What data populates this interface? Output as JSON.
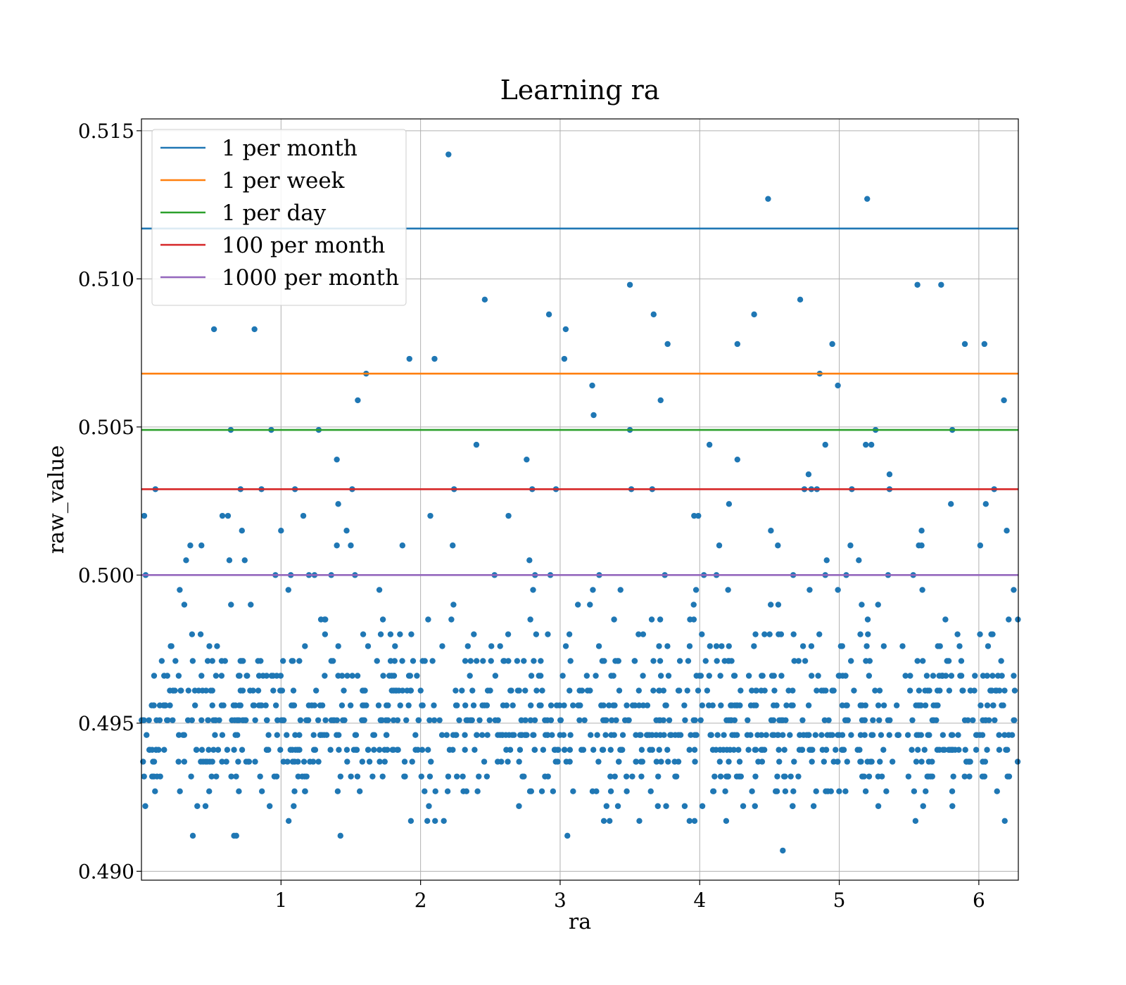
{
  "chart_data": {
    "type": "scatter",
    "title": "Learning ra",
    "xlabel": "ra",
    "ylabel": "raw_value",
    "xlim": [
      0.0,
      6.283
    ],
    "ylim": [
      0.4897,
      0.5154
    ],
    "xticks": [
      1,
      2,
      3,
      4,
      5,
      6
    ],
    "xtick_labels": [
      "1",
      "2",
      "3",
      "4",
      "5",
      "6"
    ],
    "yticks": [
      0.49,
      0.495,
      0.5,
      0.505,
      0.51,
      0.515
    ],
    "ytick_labels": [
      "0.490",
      "0.495",
      "0.500",
      "0.505",
      "0.510",
      "0.515"
    ],
    "grid": true,
    "legend_position": "upper-left",
    "hlines": [
      {
        "name": "1 per month",
        "y": 0.5117,
        "color": "#1f77b4"
      },
      {
        "name": "1 per week",
        "y": 0.5068,
        "color": "#ff7f0e"
      },
      {
        "name": "1 per day",
        "y": 0.5049,
        "color": "#2ca02c"
      },
      {
        "name": "100 per month",
        "y": 0.5029,
        "color": "#d62728"
      },
      {
        "name": "1000 per month",
        "y": 0.5,
        "color": "#9467bd"
      }
    ],
    "scatter_color": "#1f77b4",
    "outliers": [
      [
        0.02,
        0.502
      ],
      [
        0.03,
        0.5
      ],
      [
        0.1,
        0.5029
      ],
      [
        0.32,
        0.5005
      ],
      [
        0.35,
        0.501
      ],
      [
        0.43,
        0.501
      ],
      [
        0.52,
        0.5083
      ],
      [
        0.58,
        0.502
      ],
      [
        0.62,
        0.502
      ],
      [
        0.63,
        0.5005
      ],
      [
        0.64,
        0.5049
      ],
      [
        0.71,
        0.5029
      ],
      [
        0.72,
        0.5015
      ],
      [
        0.74,
        0.5005
      ],
      [
        0.81,
        0.5083
      ],
      [
        0.86,
        0.5029
      ],
      [
        0.93,
        0.5049
      ],
      [
        0.96,
        0.5
      ],
      [
        1.0,
        0.5015
      ],
      [
        1.07,
        0.5
      ],
      [
        1.1,
        0.5029
      ],
      [
        1.16,
        0.502
      ],
      [
        1.2,
        0.5
      ],
      [
        1.24,
        0.5
      ],
      [
        1.27,
        0.5049
      ],
      [
        1.36,
        0.5
      ],
      [
        1.4,
        0.5039
      ],
      [
        1.41,
        0.5024
      ],
      [
        1.4,
        0.501
      ],
      [
        1.47,
        0.5015
      ],
      [
        1.5,
        0.501
      ],
      [
        1.51,
        0.5029
      ],
      [
        1.53,
        0.5
      ],
      [
        1.55,
        0.5059
      ],
      [
        1.61,
        0.5068
      ],
      [
        1.87,
        0.501
      ],
      [
        1.92,
        0.5073
      ],
      [
        2.07,
        0.502
      ],
      [
        2.1,
        0.5073
      ],
      [
        2.2,
        0.5142
      ],
      [
        2.23,
        0.501
      ],
      [
        2.24,
        0.5029
      ],
      [
        2.4,
        0.5044
      ],
      [
        2.46,
        0.5093
      ],
      [
        2.53,
        0.5
      ],
      [
        2.63,
        0.502
      ],
      [
        2.76,
        0.5039
      ],
      [
        2.78,
        0.5005
      ],
      [
        2.8,
        0.5029
      ],
      [
        2.82,
        0.5
      ],
      [
        2.92,
        0.5088
      ],
      [
        2.93,
        0.5
      ],
      [
        2.97,
        0.5029
      ],
      [
        3.03,
        0.5073
      ],
      [
        3.04,
        0.5083
      ],
      [
        3.23,
        0.5064
      ],
      [
        3.24,
        0.5054
      ],
      [
        3.28,
        0.5
      ],
      [
        3.5,
        0.5098
      ],
      [
        3.5,
        0.5049
      ],
      [
        3.51,
        0.5029
      ],
      [
        3.66,
        0.5029
      ],
      [
        3.67,
        0.5088
      ],
      [
        3.72,
        0.5059
      ],
      [
        3.75,
        0.5
      ],
      [
        3.77,
        0.5078
      ],
      [
        3.96,
        0.502
      ],
      [
        3.99,
        0.502
      ],
      [
        4.03,
        0.5
      ],
      [
        4.07,
        0.5044
      ],
      [
        4.12,
        0.5
      ],
      [
        4.14,
        0.501
      ],
      [
        4.21,
        0.5024
      ],
      [
        4.27,
        0.5039
      ],
      [
        4.27,
        0.5078
      ],
      [
        4.39,
        0.5088
      ],
      [
        4.49,
        0.5127
      ],
      [
        4.51,
        0.5015
      ],
      [
        4.56,
        0.501
      ],
      [
        4.67,
        0.5
      ],
      [
        4.72,
        0.5093
      ],
      [
        4.75,
        0.5029
      ],
      [
        4.78,
        0.5034
      ],
      [
        4.8,
        0.5029
      ],
      [
        4.84,
        0.5029
      ],
      [
        4.86,
        0.5068
      ],
      [
        4.9,
        0.5044
      ],
      [
        4.91,
        0.5005
      ],
      [
        4.9,
        0.5
      ],
      [
        4.95,
        0.5078
      ],
      [
        4.99,
        0.5064
      ],
      [
        5.05,
        0.5
      ],
      [
        5.08,
        0.501
      ],
      [
        5.09,
        0.5029
      ],
      [
        5.14,
        0.5005
      ],
      [
        5.19,
        0.5044
      ],
      [
        5.2,
        0.5127
      ],
      [
        5.23,
        0.5044
      ],
      [
        5.26,
        0.5049
      ],
      [
        5.35,
        0.5
      ],
      [
        5.36,
        0.5034
      ],
      [
        5.36,
        0.5029
      ],
      [
        5.53,
        0.5
      ],
      [
        5.56,
        0.5098
      ],
      [
        5.57,
        0.501
      ],
      [
        5.59,
        0.501
      ],
      [
        5.59,
        0.5015
      ],
      [
        5.73,
        0.5098
      ],
      [
        5.8,
        0.5024
      ],
      [
        5.81,
        0.5049
      ],
      [
        5.9,
        0.5078
      ],
      [
        6.01,
        0.501
      ],
      [
        6.04,
        0.5078
      ],
      [
        6.05,
        0.5024
      ],
      [
        6.11,
        0.5029
      ],
      [
        6.18,
        0.5059
      ],
      [
        6.2,
        0.5015
      ],
      [
        6.25,
        0.4995
      ],
      [
        6.28,
        0.4985
      ]
    ],
    "bulk": {
      "points": 1150,
      "x_range": [
        0.0,
        6.283
      ],
      "y_levels": [
        0.4907,
        0.4912,
        0.4917,
        0.4922,
        0.4927,
        0.4932,
        0.4937,
        0.4941,
        0.4946,
        0.4951,
        0.4956,
        0.4961,
        0.4966,
        0.4971,
        0.4976,
        0.498,
        0.4985,
        0.499,
        0.4995
      ],
      "y_weights": [
        1,
        2,
        6,
        14,
        30,
        55,
        85,
        100,
        110,
        110,
        100,
        80,
        60,
        45,
        30,
        20,
        15,
        12,
        8
      ]
    }
  }
}
